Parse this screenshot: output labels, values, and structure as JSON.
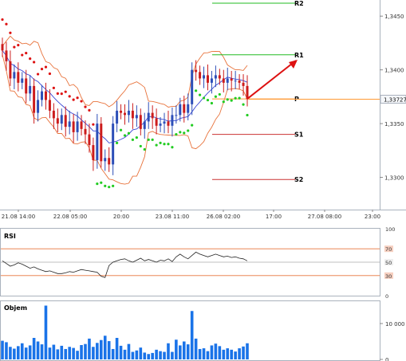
{
  "chart_data": [
    {
      "type": "candlestick",
      "panel": "price",
      "ylim": [
        1.327,
        1.3465
      ],
      "price_ticks": [
        "1,3450",
        "1,3400",
        "1,3350",
        "1,3300"
      ],
      "price_tick_values": [
        1.345,
        1.34,
        1.335,
        1.33
      ],
      "time_ticks": [
        "21.08 14:00",
        "22.08 05:00",
        "20:00",
        "23.08 11:00",
        "26.08 02:00",
        "17:00",
        "27.08 08:00",
        "23:00"
      ],
      "current_price_label": "1,33727",
      "current_price": 1.33727,
      "pivots": [
        {
          "label": "R2",
          "value": 1.3462,
          "color": "#22bb22"
        },
        {
          "label": "R1",
          "value": 1.3414,
          "color": "#22bb22"
        },
        {
          "label": "P",
          "value": 1.3373,
          "color": "#ff9933"
        },
        {
          "label": "S1",
          "value": 1.334,
          "color": "#cc3333"
        },
        {
          "label": "S2",
          "value": 1.3298,
          "color": "#cc3333"
        }
      ],
      "close": [
        1.3418,
        1.3408,
        1.3392,
        1.3398,
        1.3388,
        1.3392,
        1.3378,
        1.3385,
        1.336,
        1.3372,
        1.338,
        1.3372,
        1.3362,
        1.3355,
        1.335,
        1.3358,
        1.3347,
        1.3352,
        1.3342,
        1.3352,
        1.3345,
        1.334,
        1.333,
        1.3316,
        1.335,
        1.3315,
        1.3318,
        1.3312,
        1.335,
        1.3362,
        1.336,
        1.3358,
        1.3362,
        1.3355,
        1.3358,
        1.3345,
        1.3352,
        1.336,
        1.3355,
        1.3348,
        1.335,
        1.3352,
        1.3348,
        1.3358,
        1.3358,
        1.3368,
        1.336,
        1.3368,
        1.34,
        1.3398,
        1.3392,
        1.3395,
        1.3388,
        1.3392,
        1.3395,
        1.3392,
        1.3388,
        1.3392,
        1.339,
        1.339,
        1.3388,
        1.3385,
        1.3373
      ],
      "indicators": [
        "Bollinger Bands",
        "Moving Average",
        "Parabolic SAR",
        "Projection arrow"
      ]
    },
    {
      "type": "line",
      "panel": "indicator",
      "name": "RSI",
      "title": "RSI",
      "ylim": [
        0,
        100
      ],
      "ticks": [
        "100",
        "70",
        "50",
        "30",
        "0"
      ],
      "tick_values": [
        100,
        70,
        50,
        30,
        0
      ],
      "levels": [
        70,
        50,
        30
      ],
      "values": [
        52,
        48,
        44,
        46,
        49,
        47,
        44,
        41,
        43,
        40,
        38,
        36,
        37,
        35,
        33,
        33,
        34,
        36,
        35,
        37,
        39,
        38,
        37,
        36,
        35,
        29,
        27,
        45,
        50,
        52,
        54,
        55,
        52,
        50,
        53,
        56,
        52,
        54,
        52,
        50,
        53,
        52,
        55,
        51,
        58,
        62,
        58,
        55,
        60,
        65,
        62,
        60,
        58,
        60,
        62,
        60,
        58,
        59,
        57,
        58,
        56,
        55,
        52
      ]
    },
    {
      "type": "bar",
      "panel": "volume",
      "name": "Objem",
      "title": "Objem",
      "ylim": [
        0,
        16000
      ],
      "ticks": [
        "10 000",
        "0"
      ],
      "tick_values": [
        10000,
        0
      ],
      "values": [
        5200,
        4800,
        3500,
        3000,
        3700,
        4500,
        3300,
        3900,
        6000,
        5000,
        4200,
        15000,
        3300,
        4100,
        2800,
        3800,
        2900,
        3500,
        3200,
        2400,
        4000,
        4300,
        5800,
        3500,
        4600,
        5400,
        6600,
        5100,
        2900,
        6000,
        3800,
        2700,
        4300,
        2100,
        2500,
        3300,
        1900,
        1500,
        1800,
        2700,
        2300,
        2100,
        4500,
        2100,
        5500,
        3900,
        5000,
        4200,
        13500,
        5800,
        2900,
        3100,
        2300,
        3900,
        4400,
        3700,
        2700,
        3100,
        2700,
        2200,
        3100,
        3600,
        4500
      ],
      "color": "#1a73e8"
    }
  ]
}
